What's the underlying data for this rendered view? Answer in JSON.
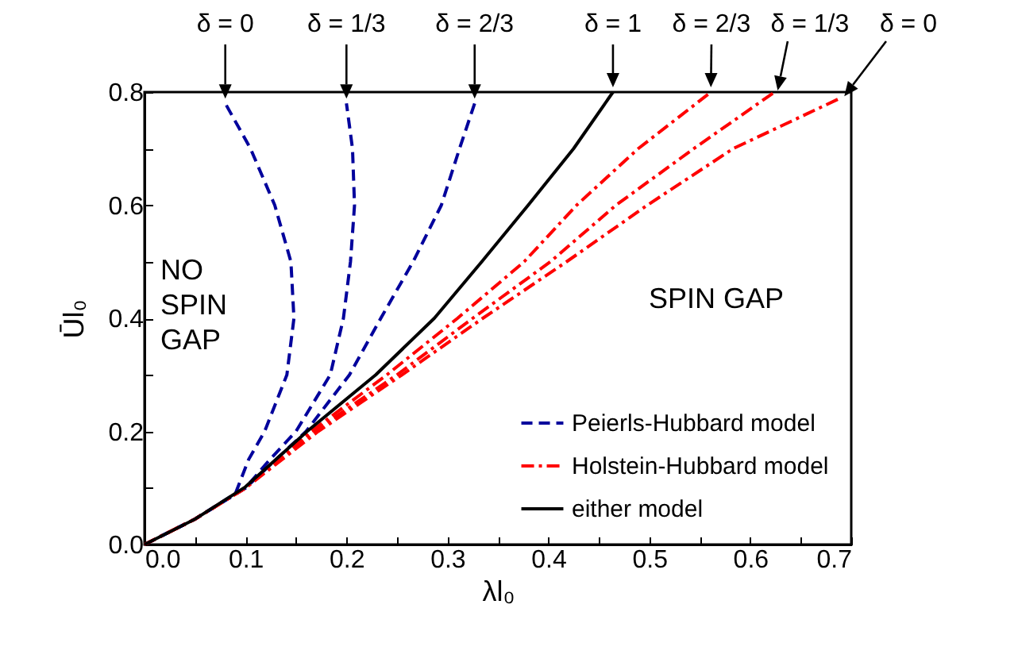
{
  "chart_data": {
    "type": "line",
    "xlabel": "λl₀",
    "ylabel": "Ūl₀",
    "xlim": [
      0,
      0.7
    ],
    "ylim": [
      0,
      0.8
    ],
    "xticks": [
      {
        "value": 0,
        "label": "0.0"
      },
      {
        "value": 0.05,
        "label": null
      },
      0.1,
      {
        "value": 0.15,
        "label": null
      },
      0.2,
      {
        "value": 0.25,
        "label": null
      },
      0.3,
      {
        "value": 0.35,
        "label": null
      },
      0.4,
      {
        "value": 0.45,
        "label": null
      },
      0.5,
      {
        "value": 0.55,
        "label": null
      },
      0.6,
      {
        "value": 0.65,
        "label": null
      },
      0.7
    ],
    "yticks": [
      {
        "value": 0,
        "label": "0.0"
      },
      {
        "value": 0.1,
        "label": null
      },
      0.2,
      {
        "value": 0.3,
        "label": null
      },
      0.4,
      {
        "value": 0.5,
        "label": null
      },
      0.6,
      {
        "value": 0.7,
        "label": null
      },
      0.8
    ],
    "grid": false,
    "legend": "bottom right",
    "marker": "none",
    "series": [
      {
        "name": "Peierls-Hubbard model",
        "color": "#00009c",
        "line_style": "dashed",
        "x": [
          0,
          0.05,
          0.09,
          0.103,
          0.119,
          0.141,
          0.148,
          0.145,
          0.129,
          0.105,
          0.08
        ],
        "values": [
          0,
          0.045,
          0.09,
          0.15,
          0.2,
          0.3,
          0.4,
          0.5,
          0.6,
          0.7,
          0.78
        ]
      },
      {
        "color": "#00009c",
        "line_style": "dashed",
        "x": [
          0,
          0.05,
          0.1,
          0.124,
          0.15,
          0.184,
          0.197,
          0.204,
          0.208,
          0.206,
          0.2
        ],
        "values": [
          0,
          0.045,
          0.1,
          0.15,
          0.2,
          0.3,
          0.4,
          0.5,
          0.6,
          0.7,
          0.78
        ]
      },
      {
        "color": "#00009c",
        "line_style": "dashed",
        "x": [
          0,
          0.05,
          0.1,
          0.16,
          0.203,
          0.234,
          0.266,
          0.294,
          0.312,
          0.327
        ],
        "values": [
          0,
          0.045,
          0.1,
          0.2,
          0.3,
          0.4,
          0.5,
          0.6,
          0.7,
          0.78
        ]
      },
      {
        "name": "Holstein-Hubbard model",
        "color": "#ff0000",
        "line_style": "dashdot",
        "x": [
          0,
          0.05,
          0.1,
          0.165,
          0.24,
          0.31,
          0.376,
          0.428,
          0.489,
          0.561
        ],
        "values": [
          0,
          0.045,
          0.1,
          0.2,
          0.3,
          0.4,
          0.5,
          0.6,
          0.7,
          0.8
        ]
      },
      {
        "color": "#ff0000",
        "line_style": "dashdot",
        "x": [
          0,
          0.05,
          0.1,
          0.168,
          0.25,
          0.325,
          0.402,
          0.467,
          0.544,
          0.624
        ],
        "values": [
          0,
          0.045,
          0.1,
          0.2,
          0.3,
          0.4,
          0.5,
          0.6,
          0.7,
          0.8
        ]
      },
      {
        "color": "#ff0000",
        "line_style": "dashdot",
        "x": [
          0,
          0.05,
          0.1,
          0.172,
          0.255,
          0.335,
          0.418,
          0.498,
          0.583,
          0.69
        ],
        "values": [
          0,
          0.045,
          0.1,
          0.2,
          0.3,
          0.4,
          0.5,
          0.6,
          0.7,
          0.79
        ]
      },
      {
        "name": "either model",
        "color": "#000000",
        "line_style": "solid",
        "x": [
          0,
          0.05,
          0.1,
          0.161,
          0.229,
          0.287,
          0.334,
          0.38,
          0.425,
          0.464
        ],
        "values": [
          0,
          0.045,
          0.102,
          0.2,
          0.3,
          0.4,
          0.5,
          0.6,
          0.7,
          0.8
        ]
      }
    ],
    "annotations": [
      {
        "text": "δ = 0",
        "x": 0.08,
        "y": 0.78
      },
      {
        "text": "δ = 1/3",
        "x": 0.2,
        "y": 0.78
      },
      {
        "text": "δ = 2/3",
        "x": 0.327,
        "y": 0.78
      },
      {
        "text": "δ = 1",
        "x": 0.464,
        "y": 0.8
      },
      {
        "text": "δ = 2/3",
        "x": 0.561,
        "y": 0.8
      },
      {
        "text": "δ = 1/3",
        "x": 0.624,
        "y": 0.8
      },
      {
        "text": "δ = 0",
        "x": 0.69,
        "y": 0.79
      },
      "NO SPIN GAP",
      "SPIN GAP"
    ]
  }
}
